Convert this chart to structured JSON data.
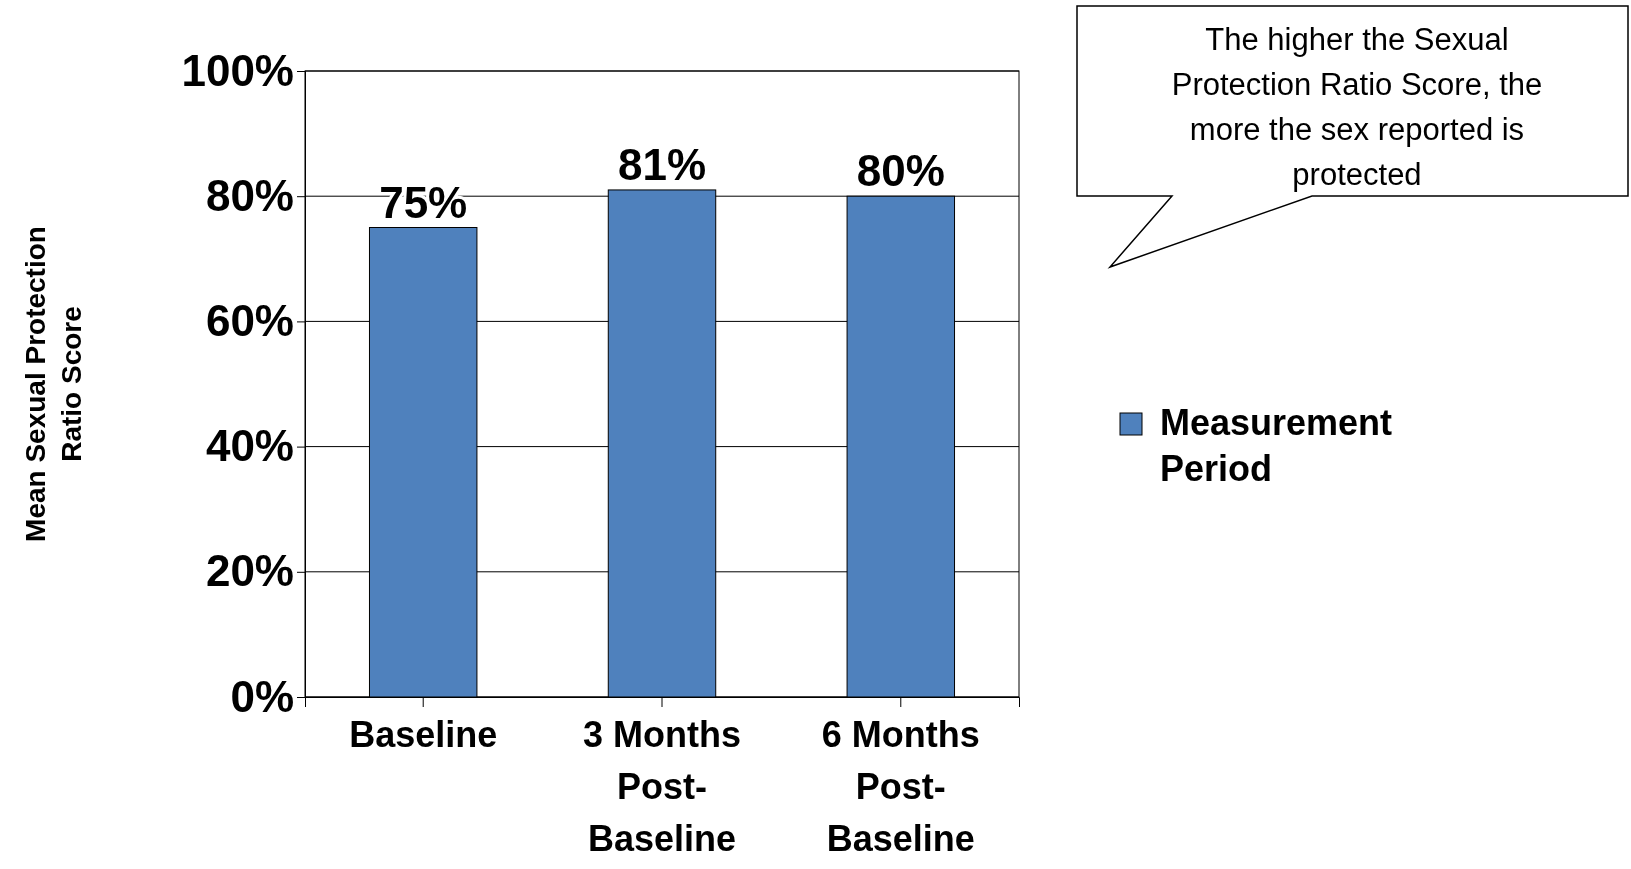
{
  "chart_data": {
    "type": "bar",
    "ylabel": "Mean Sexual Protection Ratio Score",
    "categories": [
      "Baseline",
      "3 Months Post-Baseline",
      "6 Months Post-Baseline"
    ],
    "series": [
      {
        "name": "Measurement Period",
        "color": "#4f81bd",
        "values": [
          75,
          81,
          80
        ]
      }
    ],
    "value_labels": [
      "75%",
      "81%",
      "80%"
    ],
    "ylim": [
      0,
      100
    ],
    "yticks": [
      {
        "value": 0,
        "label": "0%"
      },
      {
        "value": 20,
        "label": "20%"
      },
      {
        "value": 40,
        "label": "40%"
      },
      {
        "value": 60,
        "label": "60%"
      },
      {
        "value": 80,
        "label": "80%"
      },
      {
        "value": 100,
        "label": "100%"
      }
    ],
    "grid": "y",
    "legend": "right",
    "annotations": [
      "The higher the Sexual Protection Ratio Score, the more the sex reported is protected"
    ]
  }
}
